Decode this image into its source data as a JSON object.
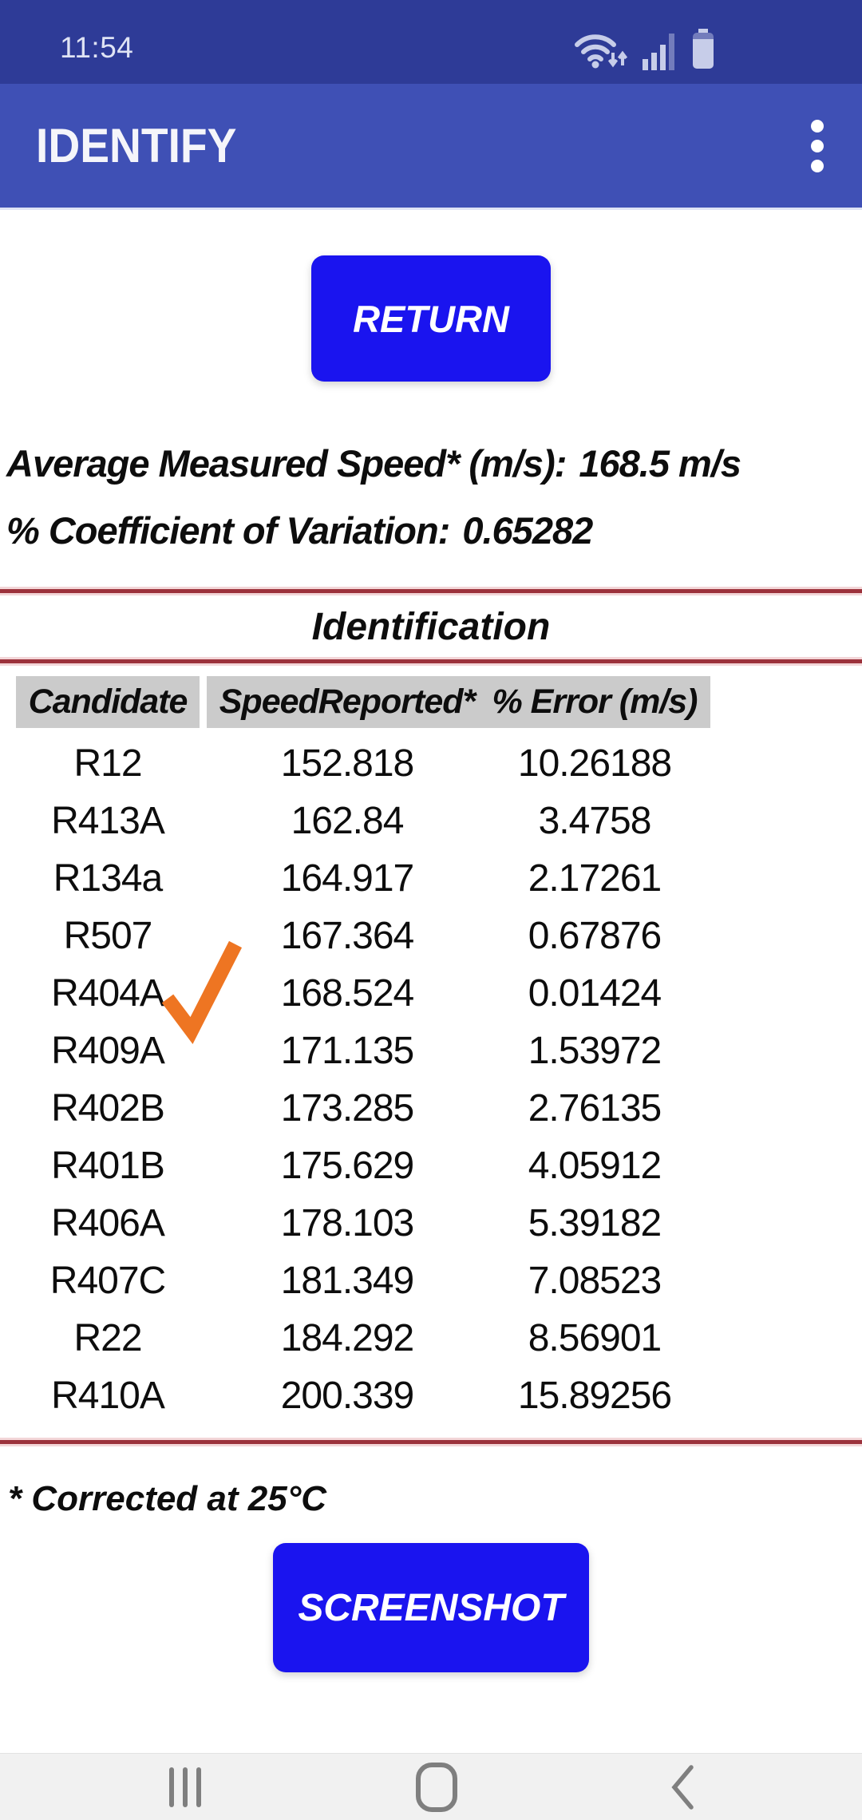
{
  "status_bar": {
    "time": "11:54",
    "icons": [
      "wifi-icon",
      "signal-strength-icon",
      "battery-icon"
    ]
  },
  "app_bar": {
    "title": "IDENTIFY",
    "menu_icon": "overflow-menu-icon"
  },
  "buttons": {
    "return": "RETURN",
    "screenshot": "SCREENSHOT"
  },
  "summary": {
    "avg_label": "Average Measured Speed* (m/s):",
    "avg_value": "168.5 m/s",
    "cov_label": "% Coefficient of Variation:",
    "cov_value": "0.65282"
  },
  "table": {
    "section_title": "Identification",
    "headers": [
      "Candidate",
      "SpeedReported*",
      "% Error (m/s)"
    ],
    "rows": [
      {
        "candidate": "R12",
        "speed": "152.818",
        "error": "10.26188",
        "selected": false
      },
      {
        "candidate": "R413A",
        "speed": "162.84",
        "error": "3.4758",
        "selected": false
      },
      {
        "candidate": "R134a",
        "speed": "164.917",
        "error": "2.17261",
        "selected": false
      },
      {
        "candidate": "R507",
        "speed": "167.364",
        "error": "0.67876",
        "selected": false
      },
      {
        "candidate": "R404A",
        "speed": "168.524",
        "error": "0.01424",
        "selected": true
      },
      {
        "candidate": "R409A",
        "speed": "171.135",
        "error": "1.53972",
        "selected": false
      },
      {
        "candidate": "R402B",
        "speed": "173.285",
        "error": "2.76135",
        "selected": false
      },
      {
        "candidate": "R401B",
        "speed": "175.629",
        "error": "4.05912",
        "selected": false
      },
      {
        "candidate": "R406A",
        "speed": "178.103",
        "error": "5.39182",
        "selected": false
      },
      {
        "candidate": "R407C",
        "speed": "181.349",
        "error": "7.08523",
        "selected": false
      },
      {
        "candidate": "R22",
        "speed": "184.292",
        "error": "8.56901",
        "selected": false
      },
      {
        "candidate": "R410A",
        "speed": "200.339",
        "error": "15.89256",
        "selected": false
      }
    ],
    "footnote": "* Corrected at 25°C"
  },
  "nav_bar": {
    "icons": [
      "recents-icon",
      "home-icon",
      "back-icon"
    ]
  },
  "colors": {
    "status_bar_bg": "#2e3b97",
    "app_bar_bg": "#3f50b5",
    "button_blue": "#1a14ef",
    "divider_red": "#9c323c",
    "divider_glow": "#f3d6d8",
    "chip_gray": "#cbcbcb",
    "check_orange": "#ee7522",
    "nav_bar_bg": "#f1f1f1",
    "nav_icon_gray": "#7f7f7f",
    "text_black": "#0d0d0d",
    "status_icon": "#c7cde9",
    "title_white": "#f5f5fa"
  }
}
